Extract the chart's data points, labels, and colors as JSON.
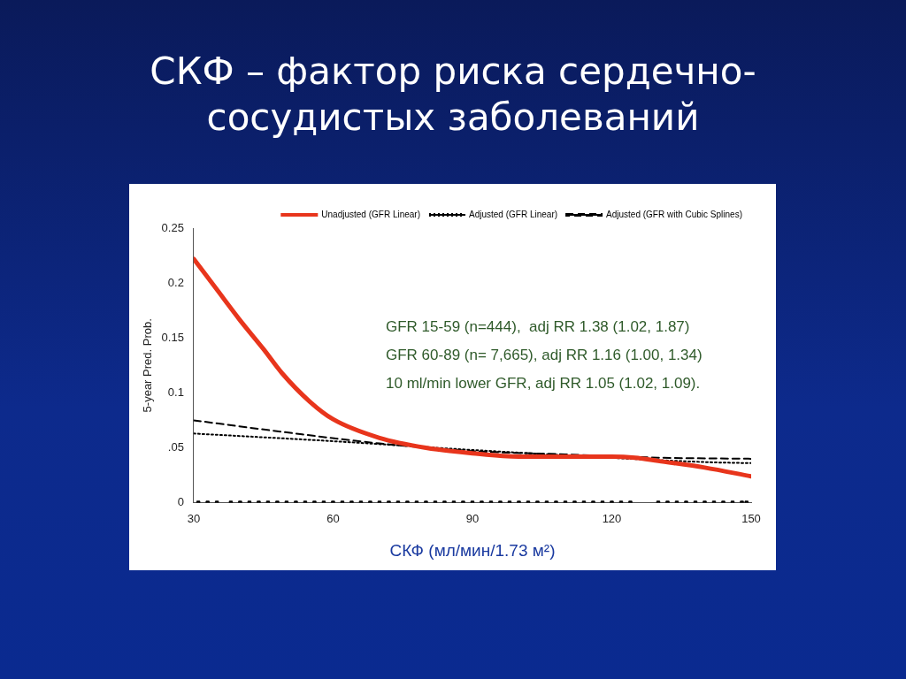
{
  "chart_data": {
    "type": "line",
    "title": "СКФ – фактор риска сердечно-сосудистых заболеваний",
    "xlabel": "СКФ (мл/мин/1.73 м²)",
    "ylabel": "5-year Pred. Prob.",
    "xlim": [
      30,
      150
    ],
    "xticks": [
      30,
      60,
      90,
      120,
      150
    ],
    "ylim": [
      0,
      0.25
    ],
    "yticks": [
      0,
      {
        "value": 0.05,
        "label": ".05"
      },
      0.1,
      0.15,
      0.2,
      0.25
    ],
    "grid": false,
    "legend": "top right",
    "marker": "none",
    "annotations": [
      "GFR 15-59 (n=444),  adj RR 1.38 (1.02, 1.87)",
      "GFR 60-89 (n= 7,665), adj RR 1.16 (1.00, 1.34)",
      "10 ml/min lower GFR, adj RR 1.05 (1.02, 1.09)."
    ],
    "series": [
      {
        "name": "Unadjusted (GFR Linear)",
        "color": "#e8351c",
        "line_style": "solid",
        "x": [
          30,
          35,
          40,
          45,
          49,
          55,
          60,
          70,
          80,
          90,
          100,
          110,
          120,
          125,
          130,
          140,
          150
        ],
        "values": [
          0.222,
          0.194,
          0.166,
          0.14,
          0.118,
          0.092,
          0.076,
          0.059,
          0.05,
          0.045,
          0.042,
          0.042,
          0.042,
          0.041,
          0.038,
          0.032,
          0.024
        ]
      },
      {
        "name": "Adjusted (GFR Linear)",
        "color": "#000000",
        "line_style": "dotted",
        "x": [
          30,
          60,
          90,
          140,
          150
        ],
        "values": [
          0.063,
          0.056,
          0.048,
          0.037,
          0.036
        ]
      },
      {
        "name": "Adjusted (GFR with Cubic Splines)",
        "color": "#000000",
        "line_style": "dashed",
        "x": [
          30,
          50,
          70,
          90,
          110,
          130,
          150
        ],
        "values": [
          0.075,
          0.064,
          0.054,
          0.047,
          0.044,
          0.041,
          0.04
        ]
      },
      {
        "type": "scatter",
        "color": "#000000",
        "marker": "square",
        "x": [
          31,
          33,
          35,
          38,
          40,
          42,
          44,
          46,
          48,
          50,
          52,
          54,
          56,
          58,
          60,
          62,
          64,
          66,
          68,
          70,
          72,
          74,
          76,
          78,
          80,
          82,
          84,
          86,
          88,
          90,
          92,
          94,
          96,
          98,
          100,
          102,
          104,
          106,
          108,
          110,
          112,
          114,
          116,
          118,
          120,
          122,
          124,
          130,
          132,
          134,
          136,
          138,
          140,
          142,
          144,
          146,
          148,
          149
        ],
        "values": [
          0,
          0,
          0,
          0,
          0,
          0,
          0,
          0,
          0,
          0,
          0,
          0,
          0,
          0,
          0,
          0,
          0,
          0,
          0,
          0,
          0,
          0,
          0,
          0,
          0,
          0,
          0,
          0,
          0,
          0,
          0,
          0,
          0,
          0,
          0,
          0,
          0,
          0,
          0,
          0,
          0,
          0,
          0,
          0,
          0,
          0,
          0,
          0,
          0,
          0,
          0,
          0,
          0,
          0,
          0,
          0,
          0,
          0
        ]
      }
    ]
  }
}
